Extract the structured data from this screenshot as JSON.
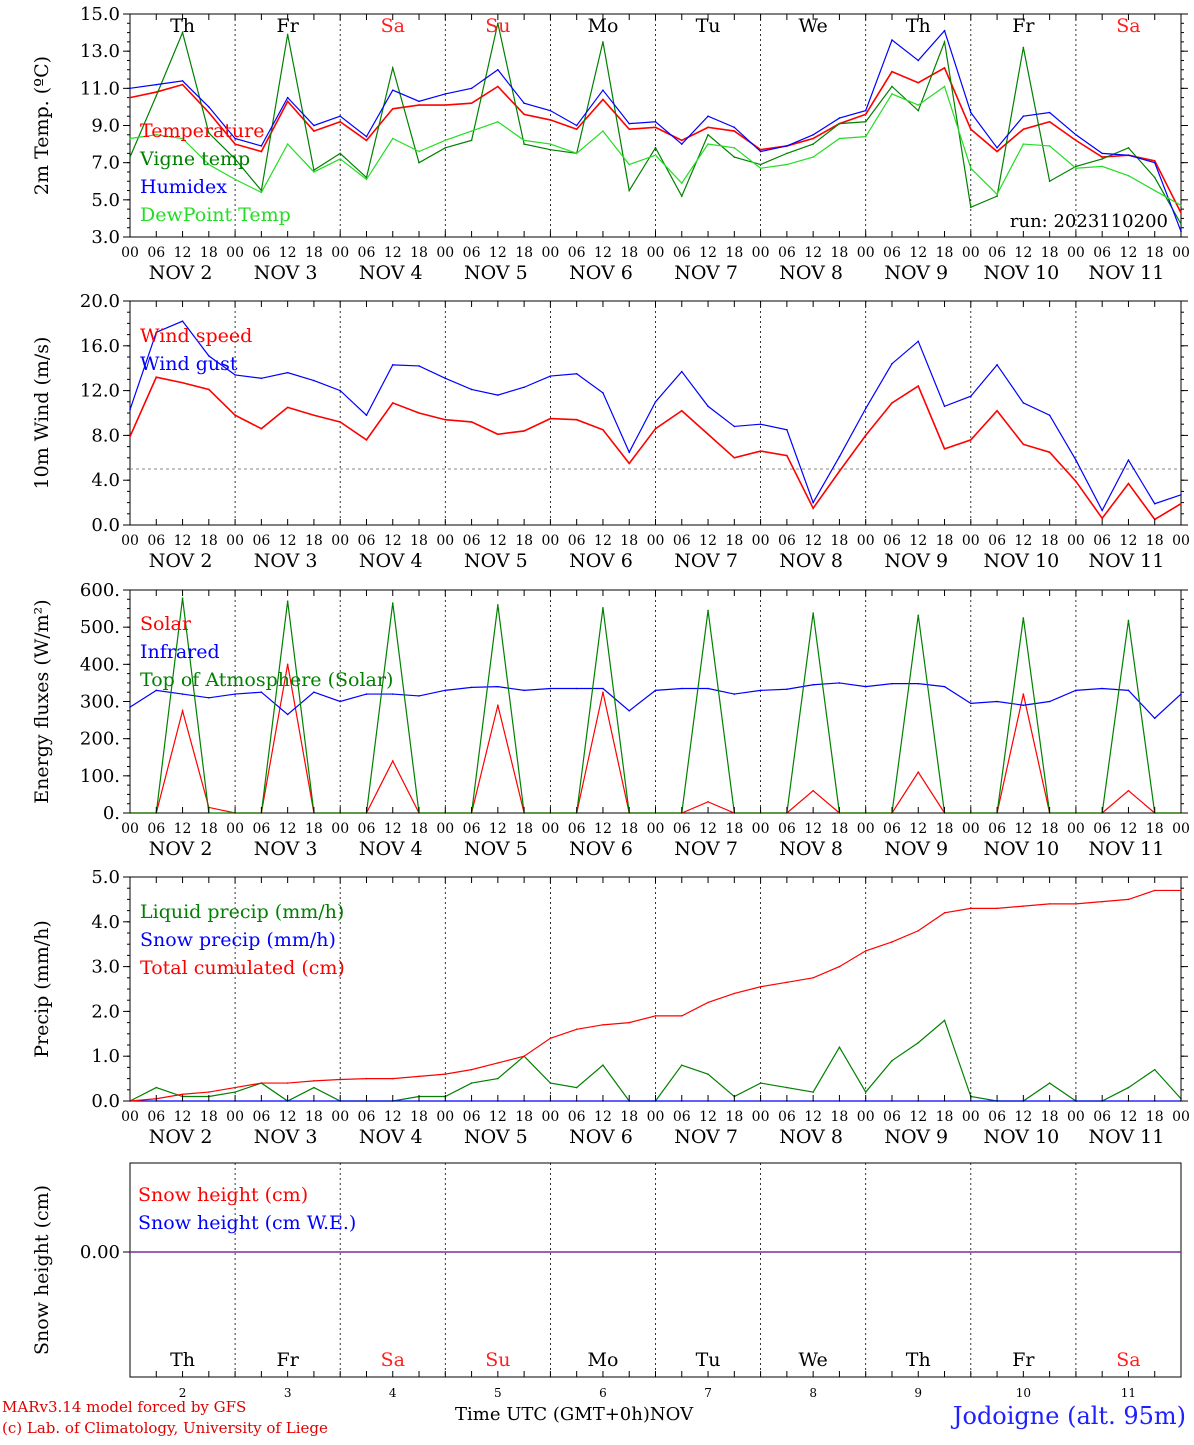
{
  "footer": {
    "credit_line1": "MARv3.14 model forced by GFS",
    "credit_line2": "(c) Lab. of Climatology, University of Liege",
    "time_label": "Time UTC (GMT+0h)",
    "month_label": "NOV",
    "station": "Jodoigne (alt. 95m)"
  },
  "colors": {
    "red": "#ff0000",
    "green": "#008000",
    "blue": "#0000ff",
    "lightgreen": "#22dd22",
    "sat_sun": "#ff2020",
    "snow_line": "#7b2d9b"
  },
  "days": [
    {
      "name": "Th",
      "date": "NOV  2",
      "num": "2",
      "weekend": false
    },
    {
      "name": "Fr",
      "date": "NOV  3",
      "num": "3",
      "weekend": false
    },
    {
      "name": "Sa",
      "date": "NOV  4",
      "num": "4",
      "weekend": true
    },
    {
      "name": "Su",
      "date": "NOV  5",
      "num": "5",
      "weekend": true
    },
    {
      "name": "Mo",
      "date": "NOV  6",
      "num": "6",
      "weekend": false
    },
    {
      "name": "Tu",
      "date": "NOV  7",
      "num": "7",
      "weekend": false
    },
    {
      "name": "We",
      "date": "NOV  8",
      "num": "8",
      "weekend": false
    },
    {
      "name": "Th",
      "date": "NOV  9",
      "num": "9",
      "weekend": false
    },
    {
      "name": "Fr",
      "date": "NOV 10",
      "num": "10",
      "weekend": false
    },
    {
      "name": "Sa",
      "date": "NOV 11",
      "num": "11",
      "weekend": true
    }
  ],
  "hour_ticks": [
    "00",
    "06",
    "12",
    "18"
  ],
  "chart_data": [
    {
      "type": "line",
      "ylabel": "2m Temp. (ºC)",
      "ylim": [
        3.0,
        15.0
      ],
      "yticks": [
        "3.0",
        "5.0",
        "7.0",
        "9.0",
        "11.0",
        "13.0",
        "15.0"
      ],
      "annotation": "run: 2023110200",
      "x_hours_since_start": [
        0,
        6,
        12,
        18,
        24,
        30,
        36,
        42,
        48,
        54,
        60,
        66,
        72,
        78,
        84,
        90,
        96,
        102,
        108,
        114,
        120,
        126,
        132,
        138,
        144,
        150,
        156,
        162,
        168,
        174,
        180,
        186,
        192,
        198,
        204,
        210,
        216,
        222,
        228,
        234,
        240
      ],
      "series": [
        {
          "name": "Temperature",
          "color": "#ff0000",
          "values": [
            10.5,
            10.8,
            11.2,
            9.7,
            8.0,
            7.6,
            10.3,
            8.7,
            9.2,
            8.2,
            9.9,
            10.1,
            10.1,
            10.2,
            11.1,
            9.6,
            9.3,
            8.8,
            10.4,
            8.8,
            8.9,
            8.2,
            8.9,
            8.7,
            7.7,
            7.9,
            8.3,
            9.1,
            9.6,
            11.9,
            11.3,
            12.1,
            8.8,
            7.6,
            8.8,
            9.2,
            8.2,
            7.3,
            7.4,
            7.1,
            4.3
          ]
        },
        {
          "name": "Vigne temp",
          "color": "#008000",
          "values": [
            7.3,
            10.6,
            14.0,
            8.6,
            7.2,
            5.5,
            13.9,
            6.6,
            7.5,
            6.2,
            12.1,
            7.0,
            7.8,
            8.2,
            14.5,
            8.0,
            7.7,
            7.5,
            13.5,
            5.5,
            7.8,
            5.2,
            8.5,
            7.3,
            6.9,
            7.5,
            8.0,
            9.1,
            9.2,
            11.1,
            9.8,
            13.5,
            4.6,
            5.2,
            13.2,
            6.0,
            6.8,
            7.2,
            7.8,
            6.2,
            3.7
          ]
        },
        {
          "name": "Humidex",
          "color": "#0000ff",
          "values": [
            11.0,
            11.2,
            11.4,
            10.0,
            8.3,
            7.9,
            10.5,
            9.0,
            9.5,
            8.4,
            10.9,
            10.3,
            10.7,
            11.0,
            12.0,
            10.2,
            9.8,
            9.0,
            10.9,
            9.1,
            9.2,
            8.0,
            9.5,
            8.9,
            7.6,
            7.9,
            8.5,
            9.4,
            9.8,
            13.6,
            12.5,
            14.1,
            9.7,
            7.8,
            9.5,
            9.7,
            8.5,
            7.5,
            7.4,
            7.0,
            3.3
          ]
        },
        {
          "name": "DewPoint Temp",
          "color": "#22dd22",
          "values": [
            8.3,
            8.5,
            8.3,
            6.9,
            6.1,
            5.4,
            8.0,
            6.5,
            7.2,
            6.1,
            8.3,
            7.6,
            8.2,
            8.7,
            9.2,
            8.2,
            8.0,
            7.5,
            8.7,
            6.9,
            7.4,
            5.9,
            8.0,
            7.8,
            6.7,
            6.9,
            7.3,
            8.3,
            8.4,
            10.7,
            10.1,
            11.1,
            6.7,
            5.3,
            8.0,
            7.9,
            6.7,
            6.8,
            6.3,
            5.5,
            4.7
          ]
        }
      ]
    },
    {
      "type": "line",
      "ylabel": "10m Wind (m/s)",
      "ylim": [
        0.0,
        20.0
      ],
      "yticks": [
        "0.0",
        "4.0",
        "8.0",
        "12.0",
        "16.0",
        "20.0"
      ],
      "reference_line": 5.0,
      "x_hours_since_start": [
        0,
        6,
        12,
        18,
        24,
        30,
        36,
        42,
        48,
        54,
        60,
        66,
        72,
        78,
        84,
        90,
        96,
        102,
        108,
        114,
        120,
        126,
        132,
        138,
        144,
        150,
        156,
        162,
        168,
        174,
        180,
        186,
        192,
        198,
        204,
        210,
        216,
        222,
        228,
        234,
        240
      ],
      "series": [
        {
          "name": "Wind speed",
          "color": "#ff0000",
          "values": [
            7.9,
            13.2,
            12.7,
            12.1,
            9.8,
            8.6,
            10.5,
            9.8,
            9.2,
            7.6,
            10.9,
            10.0,
            9.4,
            9.2,
            8.1,
            8.4,
            9.5,
            9.4,
            8.5,
            5.5,
            8.6,
            10.2,
            8.1,
            6.0,
            6.6,
            6.2,
            1.5,
            4.8,
            8.0,
            10.9,
            12.4,
            6.8,
            7.6,
            10.2,
            7.2,
            6.5,
            3.9,
            0.6,
            3.7,
            0.5,
            1.9
          ]
        },
        {
          "name": "Wind gust",
          "color": "#0000ff",
          "values": [
            10.3,
            17.2,
            18.2,
            15.1,
            13.4,
            13.1,
            13.6,
            12.9,
            12.0,
            9.8,
            14.3,
            14.2,
            13.1,
            12.1,
            11.6,
            12.3,
            13.3,
            13.5,
            11.8,
            6.5,
            11.0,
            13.7,
            10.6,
            8.8,
            9.0,
            8.5,
            2.0,
            6.1,
            10.4,
            14.4,
            16.4,
            10.6,
            11.5,
            14.3,
            10.9,
            9.8,
            5.8,
            1.3,
            5.8,
            1.9,
            2.7
          ]
        }
      ]
    },
    {
      "type": "line",
      "ylabel": "Energy fluxes (W/m²)",
      "ylim": [
        0,
        600
      ],
      "yticks": [
        "0.",
        "100.",
        "200.",
        "300.",
        "400.",
        "500.",
        "600."
      ],
      "x_hours_since_start": [
        0,
        6,
        12,
        18,
        24,
        30,
        36,
        42,
        48,
        54,
        60,
        66,
        72,
        78,
        84,
        90,
        96,
        102,
        108,
        114,
        120,
        126,
        132,
        138,
        144,
        150,
        156,
        162,
        168,
        174,
        180,
        186,
        192,
        198,
        204,
        210,
        216,
        222,
        228,
        234,
        240
      ],
      "series": [
        {
          "name": "Solar",
          "color": "#ff0000",
          "values": [
            0,
            0,
            275,
            15,
            0,
            0,
            400,
            0,
            0,
            0,
            140,
            0,
            0,
            0,
            290,
            0,
            0,
            0,
            325,
            0,
            0,
            0,
            30,
            0,
            0,
            0,
            60,
            0,
            0,
            0,
            110,
            0,
            0,
            0,
            320,
            0,
            0,
            0,
            60,
            0,
            0
          ]
        },
        {
          "name": "Infrared",
          "color": "#0000ff",
          "values": [
            285,
            330,
            320,
            310,
            320,
            325,
            265,
            325,
            300,
            320,
            320,
            315,
            330,
            338,
            340,
            330,
            335,
            335,
            335,
            275,
            330,
            335,
            335,
            320,
            330,
            333,
            345,
            350,
            340,
            348,
            348,
            340,
            295,
            300,
            290,
            300,
            330,
            335,
            330,
            255,
            320
          ]
        },
        {
          "name": "Top of Atmosphere (Solar)",
          "color": "#008000",
          "values": [
            0,
            0,
            578,
            0,
            0,
            0,
            570,
            0,
            0,
            0,
            565,
            0,
            0,
            0,
            560,
            0,
            0,
            0,
            552,
            0,
            0,
            0,
            545,
            0,
            0,
            0,
            538,
            0,
            0,
            0,
            532,
            0,
            0,
            0,
            525,
            0,
            0,
            0,
            518,
            0,
            0
          ]
        }
      ]
    },
    {
      "type": "line",
      "ylabel": "Precip (mm/h)",
      "ylim": [
        0.0,
        5.0
      ],
      "yticks": [
        "0.0",
        "1.0",
        "2.0",
        "3.0",
        "4.0",
        "5.0"
      ],
      "x_hours_since_start": [
        0,
        6,
        12,
        18,
        24,
        30,
        36,
        42,
        48,
        54,
        60,
        66,
        72,
        78,
        84,
        90,
        96,
        102,
        108,
        114,
        120,
        126,
        132,
        138,
        144,
        150,
        156,
        162,
        168,
        174,
        180,
        186,
        192,
        198,
        204,
        210,
        216,
        222,
        228,
        234,
        240
      ],
      "series": [
        {
          "name": "Liquid precip (mm/h)",
          "color": "#008000",
          "values": [
            0,
            0.3,
            0.1,
            0.1,
            0.2,
            0.4,
            0,
            0.3,
            0,
            0,
            0,
            0.1,
            0.1,
            0.4,
            0.5,
            1.0,
            0.4,
            0.3,
            0.8,
            0,
            0,
            0.8,
            0.6,
            0.1,
            0.4,
            0.3,
            0.2,
            1.2,
            0.2,
            0.9,
            1.3,
            1.8,
            0.1,
            0,
            0,
            0.4,
            0,
            0,
            0.3,
            0.7,
            0.05
          ]
        },
        {
          "name": "Snow precip (mm/h)",
          "color": "#0000ff",
          "values": [
            0,
            0,
            0,
            0,
            0,
            0,
            0,
            0,
            0,
            0,
            0,
            0,
            0,
            0,
            0,
            0,
            0,
            0,
            0,
            0,
            0,
            0,
            0,
            0,
            0,
            0,
            0,
            0,
            0,
            0,
            0,
            0,
            0,
            0,
            0,
            0,
            0,
            0,
            0,
            0,
            0
          ]
        },
        {
          "name": "Total cumulated (cm)",
          "color": "#ff0000",
          "values": [
            0,
            0.05,
            0.15,
            0.2,
            0.3,
            0.4,
            0.4,
            0.45,
            0.48,
            0.5,
            0.5,
            0.55,
            0.6,
            0.7,
            0.85,
            1.0,
            1.4,
            1.6,
            1.7,
            1.75,
            1.9,
            1.9,
            2.2,
            2.4,
            2.55,
            2.65,
            2.75,
            3.0,
            3.35,
            3.55,
            3.8,
            4.2,
            4.3,
            4.3,
            4.35,
            4.4,
            4.4,
            4.45,
            4.5,
            4.7,
            4.7
          ]
        }
      ]
    },
    {
      "type": "line",
      "ylabel": "Snow height (cm)",
      "yticks": [
        "0.00"
      ],
      "series": [
        {
          "name": "Snow height (cm)",
          "color": "#ff0000",
          "values": [
            0,
            0
          ]
        },
        {
          "name": "Snow height (cm W.E.)",
          "color": "#0000ff",
          "values": [
            0,
            0
          ]
        }
      ]
    }
  ]
}
